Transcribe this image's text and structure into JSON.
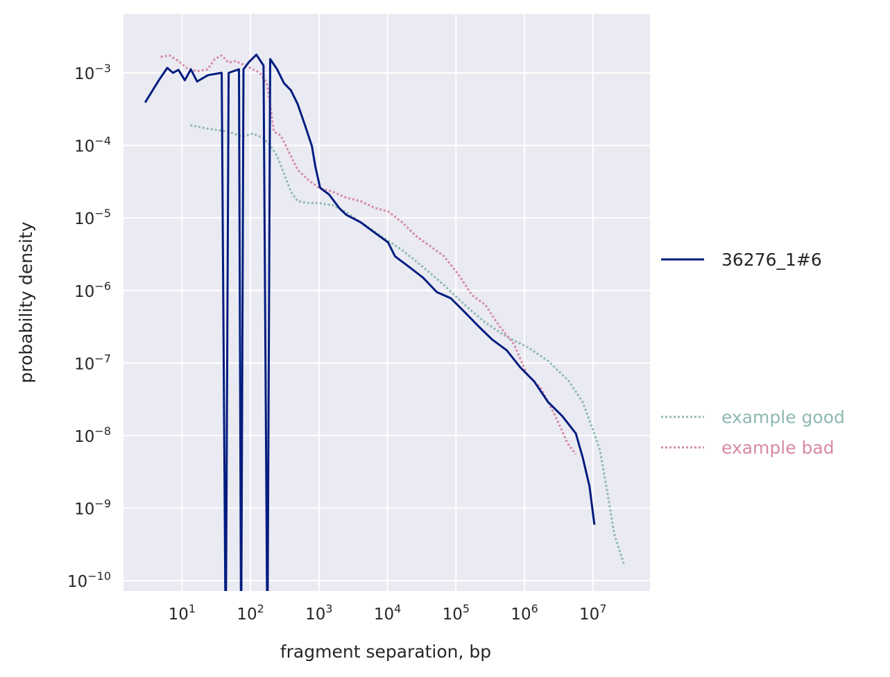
{
  "chart_data": {
    "type": "line",
    "title": "",
    "xlabel": "fragment separation, bp",
    "ylabel": "probability density",
    "xscale": "log",
    "yscale": "log",
    "xlim": [
      1.4,
      68000000
    ],
    "ylim": [
      7.2e-11,
      0.0065
    ],
    "grid": true,
    "tick_base": "10",
    "xtick_exponents": [
      "1",
      "2",
      "3",
      "4",
      "5",
      "6",
      "7"
    ],
    "ytick_exponents": [
      "−3",
      "−4",
      "−5",
      "−6",
      "−7",
      "−8",
      "−9",
      "−10"
    ],
    "xtick_values": [
      1,
      2,
      3,
      4,
      5,
      6,
      7
    ],
    "ytick_values": [
      -3,
      -4,
      -5,
      -6,
      -7,
      -8,
      -9,
      -10
    ],
    "legend_placement": "outside-right",
    "series": [
      {
        "name": "36276_1#6",
        "color": "#001c7f",
        "style": "solid",
        "x": [
          2.9,
          4.6,
          6.1,
          7.4,
          8.9,
          11,
          13.5,
          16.6,
          24,
          38,
          43.5,
          48,
          68,
          73,
          79,
          95,
          122,
          155,
          177,
          194,
          245,
          309,
          389,
          490,
          624,
          789,
          885,
          1040,
          1410,
          2000,
          2510,
          4070,
          6460,
          10200,
          12900,
          20900,
          33100,
          52500,
          84100,
          134900,
          213800,
          338800,
          549500,
          871000,
          1380000,
          2210000,
          3550000,
          5620000,
          7080000,
          8910000,
          10500000
        ],
        "y": [
          0.00039,
          0.00079,
          0.00117,
          0.001,
          0.0011,
          0.00079,
          0.00112,
          0.00076,
          0.00093,
          0.001,
          1e-11,
          0.001,
          0.00112,
          1e-11,
          0.00112,
          0.00141,
          0.00178,
          0.00126,
          1e-11,
          0.00155,
          0.00112,
          0.00072,
          0.000575,
          0.00037,
          0.00019,
          9.8e-05,
          5.1e-05,
          2.6e-05,
          2.1e-05,
          1.35e-05,
          1.1e-05,
          8.7e-06,
          6.3e-06,
          4.6e-06,
          2.95e-06,
          2.1e-06,
          1.5e-06,
          9.5e-07,
          7.8e-07,
          5e-07,
          3.2e-07,
          2.1e-07,
          1.5e-07,
          8.7e-08,
          5.6e-08,
          2.9e-08,
          1.86e-08,
          1.07e-08,
          5e-09,
          2e-09,
          5.9e-10
        ]
      },
      {
        "name": "example good",
        "color": "#8fb8b3",
        "style": "dotted",
        "x": [
          13.2,
          23.7,
          47.9,
          75.9,
          108,
          148,
          195,
          245,
          309,
          389,
          490,
          708,
          1000,
          1580,
          2510,
          4070,
          8130,
          16400,
          33100,
          66100,
          134900,
          269200,
          549500,
          1100000,
          2210000,
          4470000,
          7080000,
          10000000,
          12700000,
          16200000,
          20400000,
          28800000
        ],
        "y": [
          0.00019,
          0.00017,
          0.000155,
          0.000132,
          0.000145,
          0.000129,
          0.0001,
          7.1e-05,
          4.1e-05,
          2.3e-05,
          1.7e-05,
          1.6e-05,
          1.6e-05,
          1.5e-05,
          1.2e-05,
          8.7e-06,
          5.6e-06,
          3.6e-06,
          2.1e-06,
          1.2e-06,
          6.3e-07,
          3.6e-07,
          2.3e-07,
          1.66e-07,
          1.07e-07,
          5.6e-08,
          2.9e-08,
          1.2e-08,
          6.2e-09,
          1.66e-09,
          4.4e-10,
          1.6e-10
        ]
      },
      {
        "name": "example bad",
        "color": "#d689a6",
        "style": "dotted",
        "x": [
          4.9,
          6.6,
          8.9,
          11.7,
          16.6,
          23.7,
          30.2,
          37.8,
          47.9,
          60.3,
          85.1,
          108,
          137,
          173,
          194,
          219,
          275,
          347,
          490,
          708,
          1000,
          1580,
          2510,
          4070,
          6460,
          10200,
          16400,
          26300,
          41700,
          66100,
          107000,
          170000,
          269000,
          432000,
          692000,
          1100000,
          1740000,
          2820000,
          4270000,
          5620000
        ],
        "y": [
          0.00166,
          0.00174,
          0.00145,
          0.00117,
          0.00105,
          0.00112,
          0.00155,
          0.00174,
          0.00138,
          0.00145,
          0.00126,
          0.00112,
          0.001,
          0.00072,
          0.00037,
          0.000155,
          0.000138,
          8.9e-05,
          4.6e-05,
          3.3e-05,
          2.6e-05,
          2.3e-05,
          1.9e-05,
          1.7e-05,
          1.38e-05,
          1.23e-05,
          8.7e-06,
          5.6e-06,
          4.1e-06,
          3e-06,
          1.7e-06,
          8.7e-07,
          6.3e-07,
          3.2e-07,
          1.86e-07,
          6.9e-08,
          4.5e-08,
          1.86e-08,
          7.8e-09,
          5.5e-09
        ]
      }
    ]
  }
}
